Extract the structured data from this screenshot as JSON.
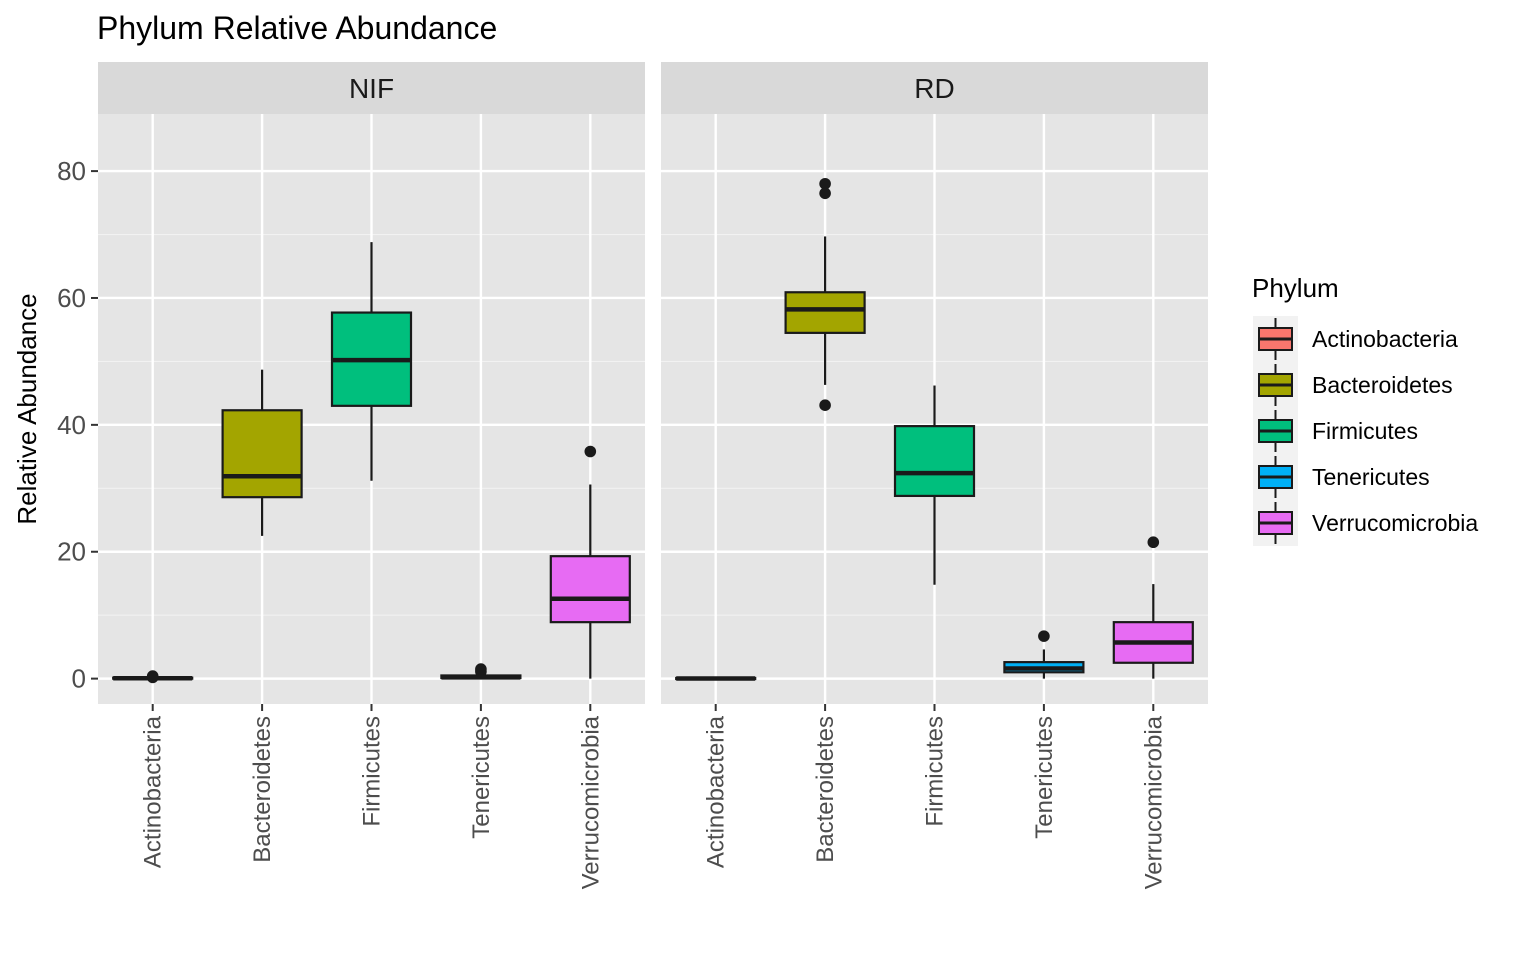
{
  "chart_data": {
    "type": "boxplot",
    "title": "Phylum Relative Abundance",
    "ylabel": "Relative Abundance",
    "xlabel": "",
    "ylim": [
      -4,
      89
    ],
    "yticks": [
      0,
      20,
      40,
      60,
      80
    ],
    "categories": [
      "Actinobacteria",
      "Bacteroidetes",
      "Firmicutes",
      "Tenericutes",
      "Verrucomicrobia"
    ],
    "grid": true,
    "legend": {
      "title": "Phylum",
      "position": "right",
      "items": [
        {
          "label": "Actinobacteria",
          "color": "#F8766D"
        },
        {
          "label": "Bacteroidetes",
          "color": "#A3A500"
        },
        {
          "label": "Firmicutes",
          "color": "#00BF7D"
        },
        {
          "label": "Tenericutes",
          "color": "#00B0F6"
        },
        {
          "label": "Verrucomicrobia",
          "color": "#E76BF3"
        }
      ]
    },
    "panels": [
      {
        "name": "NIF",
        "boxes": [
          {
            "category": "Actinobacteria",
            "min": 0,
            "q1": 0,
            "median": 0.05,
            "q3": 0.15,
            "max": 0.3,
            "outliers": [
              0.2,
              0.4
            ]
          },
          {
            "category": "Bacteroidetes",
            "min": 22.5,
            "q1": 28.6,
            "median": 31.9,
            "q3": 42.3,
            "max": 48.7,
            "outliers": []
          },
          {
            "category": "Firmicutes",
            "min": 31.2,
            "q1": 43.0,
            "median": 50.2,
            "q3": 57.7,
            "max": 68.8,
            "outliers": []
          },
          {
            "category": "Tenericutes",
            "min": 0,
            "q1": 0.1,
            "median": 0.2,
            "q3": 0.5,
            "max": 0.8,
            "outliers": [
              1.1,
              1.5
            ]
          },
          {
            "category": "Verrucomicrobia",
            "min": 0,
            "q1": 8.9,
            "median": 12.6,
            "q3": 19.3,
            "max": 30.6,
            "outliers": [
              35.8
            ]
          }
        ]
      },
      {
        "name": "RD",
        "boxes": [
          {
            "category": "Actinobacteria",
            "min": 0,
            "q1": 0,
            "median": 0.02,
            "q3": 0.1,
            "max": 0.2,
            "outliers": []
          },
          {
            "category": "Bacteroidetes",
            "min": 46.3,
            "q1": 54.5,
            "median": 58.2,
            "q3": 60.9,
            "max": 69.7,
            "outliers": [
              43.1,
              76.5,
              78.0
            ]
          },
          {
            "category": "Firmicutes",
            "min": 14.8,
            "q1": 28.8,
            "median": 32.4,
            "q3": 39.8,
            "max": 46.2,
            "outliers": []
          },
          {
            "category": "Tenericutes",
            "min": 0,
            "q1": 1.0,
            "median": 1.6,
            "q3": 2.6,
            "max": 4.6,
            "outliers": [
              6.7
            ]
          },
          {
            "category": "Verrucomicrobia",
            "min": 0,
            "q1": 2.5,
            "median": 5.7,
            "q3": 8.9,
            "max": 14.9,
            "outliers": [
              21.5
            ]
          }
        ]
      }
    ]
  }
}
